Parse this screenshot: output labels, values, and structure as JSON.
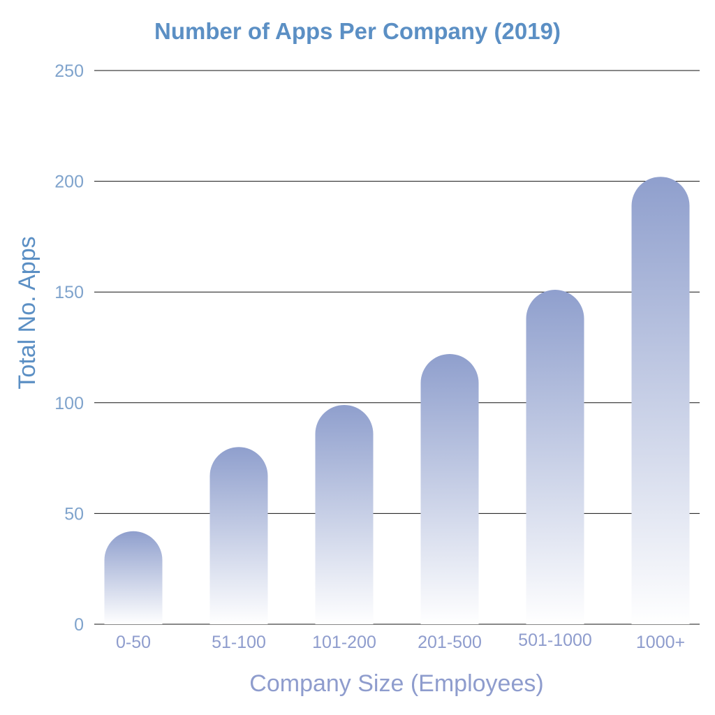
{
  "chart_data": {
    "type": "bar",
    "title": "Number of Apps Per Company (2019)",
    "xlabel": "Company Size (Employees)",
    "ylabel": "Total No.  Apps",
    "categories": [
      "0-50",
      "51-100",
      "101-200",
      "201-500",
      "501-1000",
      "1000+"
    ],
    "values": [
      42,
      80,
      99,
      122,
      151,
      202
    ],
    "ylim": [
      0,
      250
    ],
    "yticks": [
      "0",
      "50",
      "100",
      "150",
      "200",
      "250"
    ],
    "grid": true,
    "legend": "none"
  },
  "colors": {
    "title": "#5b8fc4",
    "ylabel": "#5b8fc4",
    "ytick": "#7fa3cc",
    "xtick": "#8e9ccd",
    "xlabel": "#8e9ccd",
    "bar_top": "#8f9fcd",
    "bar_bottom": "#ffffff",
    "grid": "#111111"
  }
}
